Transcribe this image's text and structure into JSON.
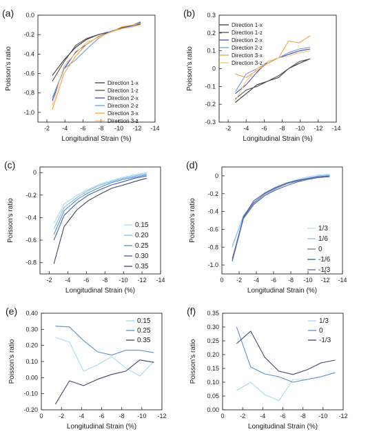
{
  "chart_data": [
    {
      "panel": "(a)",
      "type": "line",
      "xlabel": "Longitudinal Strain (%)",
      "ylabel": "Poisson's ratio",
      "xlim": [
        -1,
        -14
      ],
      "ylim": [
        -1.1,
        0
      ],
      "xticks": [
        -2,
        -4,
        -6,
        -8,
        -10,
        -12,
        -14
      ],
      "xtick_labels": [
        "-2",
        "-4",
        "-6",
        "-8",
        "-10",
        "-12",
        "-14"
      ],
      "yticks": [
        0,
        -0.2,
        -0.4,
        -0.6,
        -0.8,
        -1.0
      ],
      "ytick_labels": [
        "0.0",
        "-0.2",
        "-0.4",
        "-0.6",
        "-0.8",
        "-1.0"
      ],
      "legend_position": "bottom-right",
      "series": [
        {
          "name": "Direction 1-x",
          "color": "#3a3a3a",
          "x": [
            -2.6,
            -3.9,
            -5.2,
            -6.4,
            -7.7,
            -9.0,
            -10.3,
            -11.6,
            -12.4
          ],
          "y": [
            -0.62,
            -0.46,
            -0.33,
            -0.25,
            -0.2,
            -0.17,
            -0.13,
            -0.11,
            -0.09
          ]
        },
        {
          "name": "Direction 1-z",
          "color": "#505050",
          "x": [
            -2.6,
            -3.9,
            -5.2,
            -6.4,
            -7.7,
            -9.0,
            -10.3,
            -11.6,
            -12.4
          ],
          "y": [
            -0.68,
            -0.48,
            -0.31,
            -0.24,
            -0.2,
            -0.17,
            -0.13,
            -0.1,
            -0.07
          ]
        },
        {
          "name": "Direction 2-x",
          "color": "#3b4fc4",
          "x": [
            -2.6,
            -3.9,
            -5.2,
            -6.4,
            -7.7,
            -9.0,
            -10.3,
            -11.6,
            -12.4
          ],
          "y": [
            -0.88,
            -0.55,
            -0.38,
            -0.3,
            -0.22,
            -0.17,
            -0.14,
            -0.1,
            -0.07
          ]
        },
        {
          "name": "Direction 2-z",
          "color": "#6f9be0",
          "x": [
            -2.6,
            -3.9,
            -5.2,
            -6.4,
            -7.7,
            -9.0,
            -10.3,
            -11.6,
            -12.4
          ],
          "y": [
            -0.85,
            -0.55,
            -0.46,
            -0.35,
            -0.24,
            -0.17,
            -0.14,
            -0.11,
            -0.08
          ]
        },
        {
          "name": "Direction 3-x",
          "color": "#f2a23a",
          "x": [
            -2.6,
            -3.9,
            -5.2,
            -6.4,
            -7.7,
            -9.0,
            -10.3,
            -11.6,
            -12.4
          ],
          "y": [
            -0.97,
            -0.6,
            -0.42,
            -0.3,
            -0.22,
            -0.18,
            -0.12,
            -0.1,
            -0.08
          ]
        },
        {
          "name": "Direction 3-z",
          "color": "#f7c27a",
          "x": [
            -2.6,
            -3.9,
            -5.2,
            -6.4,
            -7.7,
            -9.0,
            -10.3,
            -11.6,
            -12.4
          ],
          "y": [
            -0.93,
            -0.52,
            -0.39,
            -0.28,
            -0.23,
            -0.18,
            -0.14,
            -0.12,
            -0.1
          ]
        }
      ]
    },
    {
      "panel": "(b)",
      "type": "line",
      "xlabel": "Longitudinal Strain (%)",
      "ylabel": "Poisson's ratio",
      "xlim": [
        -1,
        -14
      ],
      "ylim": [
        -0.3,
        0.3
      ],
      "xticks": [
        -2,
        -4,
        -6,
        -8,
        -10,
        -12,
        -14
      ],
      "xtick_labels": [
        "-2",
        "-4",
        "-6",
        "-8",
        "-10",
        "-12",
        "-14"
      ],
      "yticks": [
        0.3,
        0.2,
        0.1,
        0,
        -0.1,
        -0.2,
        -0.3
      ],
      "ytick_labels": [
        "0.3",
        "0.2",
        "0.1",
        "0",
        "-0.1",
        "-0.2",
        "-0.3"
      ],
      "legend_position": "top-left",
      "series": [
        {
          "name": "Direction 1-x",
          "color": "#3a3a3a",
          "x": [
            -2.8,
            -4.0,
            -5.2,
            -6.4,
            -7.6,
            -8.7,
            -9.9,
            -11.1
          ],
          "y": [
            -0.19,
            -0.14,
            -0.09,
            -0.07,
            -0.05,
            0.0,
            0.03,
            0.055
          ]
        },
        {
          "name": "Direction 1-z",
          "color": "#505050",
          "x": [
            -2.8,
            -4.0,
            -5.2,
            -6.4,
            -7.6,
            -8.7,
            -9.9,
            -11.1
          ],
          "y": [
            -0.17,
            -0.12,
            -0.1,
            -0.07,
            -0.04,
            0.0,
            0.04,
            0.055
          ]
        },
        {
          "name": "Direction 2-x",
          "color": "#3b4fc4",
          "x": [
            -2.8,
            -4.0,
            -5.2,
            -6.4,
            -7.6,
            -8.7,
            -9.9,
            -11.1
          ],
          "y": [
            -0.14,
            -0.09,
            -0.02,
            0.04,
            0.06,
            0.08,
            0.1,
            0.11
          ]
        },
        {
          "name": "Direction 2-z",
          "color": "#6f9be0",
          "x": [
            -2.8,
            -4.0,
            -5.2,
            -6.4,
            -7.6,
            -8.7,
            -9.9,
            -11.1
          ],
          "y": [
            -0.13,
            -0.03,
            0.0,
            0.03,
            0.06,
            0.09,
            0.11,
            0.12
          ]
        },
        {
          "name": "Direction 3-x",
          "color": "#f2a23a",
          "x": [
            -2.8,
            -4.0,
            -5.2,
            -6.4,
            -7.6,
            -8.7,
            -9.9,
            -11.1
          ],
          "y": [
            -0.03,
            -0.05,
            -0.01,
            0.03,
            0.06,
            0.155,
            0.145,
            0.185
          ]
        },
        {
          "name": "Direction 3-z",
          "color": "#f7c27a",
          "x": [
            -2.8,
            -4.0,
            -5.2,
            -6.4,
            -7.6,
            -8.7,
            -9.9,
            -11.1
          ],
          "y": [
            -0.18,
            -0.07,
            0.0,
            0.04,
            0.06,
            0.07,
            0.09,
            0.1
          ]
        }
      ]
    },
    {
      "panel": "(c)",
      "type": "line",
      "xlabel": "Longitudinal Strain (%)",
      "ylabel": "Poisson's ratio",
      "xlim": [
        -1,
        -14
      ],
      "ylim": [
        -0.9,
        0.05
      ],
      "xticks": [
        -2,
        -4,
        -6,
        -8,
        -10,
        -12,
        -14
      ],
      "xtick_labels": [
        "-2",
        "-4",
        "-6",
        "-8",
        "-10",
        "-12",
        "-14"
      ],
      "yticks": [
        0,
        -0.2,
        -0.4,
        -0.6,
        -0.8
      ],
      "ytick_labels": [
        "0",
        "-0.2",
        "-0.4",
        "-0.6",
        "-0.8"
      ],
      "legend_position": "bottom-right",
      "series": [
        {
          "name": "0.15",
          "color": "#a6d8f2",
          "x": [
            -2.5,
            -3.6,
            -5.0,
            -6.2,
            -7.5,
            -8.7,
            -10.0,
            -11.2,
            -12.5
          ],
          "y": [
            -0.45,
            -0.28,
            -0.2,
            -0.15,
            -0.1,
            -0.07,
            -0.04,
            -0.02,
            0.0
          ]
        },
        {
          "name": "0.20",
          "color": "#7cbde6",
          "x": [
            -2.5,
            -3.6,
            -5.0,
            -6.2,
            -7.5,
            -8.7,
            -10.0,
            -11.2,
            -12.5
          ],
          "y": [
            -0.5,
            -0.31,
            -0.22,
            -0.16,
            -0.11,
            -0.08,
            -0.05,
            -0.03,
            -0.01
          ]
        },
        {
          "name": "0.25",
          "color": "#5b8fd0",
          "x": [
            -2.5,
            -3.6,
            -5.0,
            -6.2,
            -7.5,
            -8.7,
            -10.0,
            -11.2,
            -12.5
          ],
          "y": [
            -0.55,
            -0.34,
            -0.24,
            -0.18,
            -0.13,
            -0.09,
            -0.06,
            -0.04,
            -0.02
          ]
        },
        {
          "name": "0.30",
          "color": "#3d5fae",
          "x": [
            -2.5,
            -3.6,
            -5.0,
            -6.2,
            -7.5,
            -8.7,
            -10.0,
            -11.2,
            -12.5
          ],
          "y": [
            -0.6,
            -0.38,
            -0.27,
            -0.2,
            -0.15,
            -0.11,
            -0.08,
            -0.05,
            -0.03
          ]
        },
        {
          "name": "0.35",
          "color": "#3b4566",
          "x": [
            -2.5,
            -3.6,
            -5.0,
            -6.2,
            -7.5,
            -8.7,
            -10.0,
            -11.2,
            -12.5
          ],
          "y": [
            -0.81,
            -0.48,
            -0.33,
            -0.25,
            -0.19,
            -0.14,
            -0.11,
            -0.08,
            -0.05
          ]
        }
      ]
    },
    {
      "panel": "(d)",
      "type": "line",
      "xlabel": "Longitudinal Strain (%)",
      "ylabel": "Poisson's ratio",
      "xlim": [
        0,
        -14
      ],
      "ylim": [
        -1.1,
        0.1
      ],
      "xticks": [
        0,
        -2,
        -4,
        -6,
        -8,
        -10,
        -12,
        -14
      ],
      "xtick_labels": [
        "0",
        "-2",
        "-4",
        "-6",
        "-8",
        "-10",
        "-12",
        "-14"
      ],
      "yticks": [
        0,
        -0.2,
        -0.4,
        -0.6,
        -0.8,
        -1.0
      ],
      "ytick_labels": [
        "0",
        "-0.2",
        "-0.4",
        "-0.6",
        "-0.8",
        "-1.0"
      ],
      "legend_position": "bottom-right",
      "series": [
        {
          "name": "1/3",
          "color": "#b9def2",
          "x": [
            -1.2,
            -2.5,
            -3.7,
            -5.0,
            -6.2,
            -7.5,
            -8.7,
            -10.0,
            -11.2,
            -12.5
          ],
          "y": [
            -0.78,
            -0.44,
            -0.3,
            -0.21,
            -0.14,
            -0.08,
            -0.04,
            -0.01,
            0.01,
            0.02
          ]
        },
        {
          "name": "1/6",
          "color": "#8cc6ea",
          "x": [
            -1.2,
            -2.5,
            -3.7,
            -5.0,
            -6.2,
            -7.5,
            -8.7,
            -10.0,
            -11.2,
            -12.5
          ],
          "y": [
            -0.8,
            -0.45,
            -0.31,
            -0.22,
            -0.15,
            -0.09,
            -0.05,
            -0.02,
            0.0,
            0.01
          ]
        },
        {
          "name": "0",
          "color": "#6f7c92",
          "x": [
            -1.2,
            -2.5,
            -3.7,
            -5.0,
            -6.2,
            -7.5,
            -8.7,
            -10.0,
            -11.2,
            -12.5
          ],
          "y": [
            -0.93,
            -0.47,
            -0.3,
            -0.2,
            -0.14,
            -0.09,
            -0.06,
            -0.03,
            -0.01,
            0.0
          ]
        },
        {
          "name": "-1/6",
          "color": "#3d5fae",
          "x": [
            -1.2,
            -2.5,
            -3.7,
            -5.0,
            -6.2,
            -7.5,
            -8.7,
            -10.0,
            -11.2,
            -12.5
          ],
          "y": [
            -0.95,
            -0.46,
            -0.28,
            -0.19,
            -0.13,
            -0.08,
            -0.05,
            -0.03,
            -0.01,
            0.0
          ]
        },
        {
          "name": "-1/3",
          "color": "#5a63b8",
          "x": [
            -1.2,
            -2.5,
            -3.7,
            -5.0,
            -6.2,
            -7.5,
            -8.7,
            -10.0,
            -11.2,
            -12.5
          ],
          "y": [
            -0.96,
            -0.48,
            -0.32,
            -0.22,
            -0.16,
            -0.11,
            -0.07,
            -0.04,
            -0.02,
            -0.01
          ]
        }
      ]
    },
    {
      "panel": "(e)",
      "type": "line",
      "xlabel": "Longitudinal Strain (%)",
      "ylabel": "Poisson's ratio",
      "xlim": [
        0,
        -12
      ],
      "ylim": [
        -0.2,
        0.4
      ],
      "xticks": [
        0,
        -2,
        -4,
        -6,
        -8,
        -10,
        -12
      ],
      "xtick_labels": [
        "0",
        "-2",
        "-4",
        "-6",
        "-8",
        "-10",
        "-12"
      ],
      "yticks": [
        0.4,
        0.3,
        0.2,
        0.1,
        0,
        -0.1,
        -0.2
      ],
      "ytick_labels": [
        "0.40",
        "0.30",
        "0.20",
        "0.10",
        "0.00",
        "-0.10",
        "-0.20"
      ],
      "legend_position": "top-right",
      "series": [
        {
          "name": "0.15",
          "color": "#a6d8f2",
          "x": [
            -1.4,
            -2.8,
            -4.2,
            -5.6,
            -7.0,
            -8.4,
            -9.8,
            -11.2
          ],
          "y": [
            0.25,
            0.22,
            0.04,
            0.08,
            0.13,
            0.06,
            0.01,
            0.1
          ]
        },
        {
          "name": "0.25",
          "color": "#5b8fd0",
          "x": [
            -1.4,
            -2.8,
            -4.2,
            -5.6,
            -7.0,
            -8.4,
            -9.8,
            -11.2
          ],
          "y": [
            0.32,
            0.315,
            0.23,
            0.16,
            0.14,
            0.17,
            0.17,
            0.155
          ]
        },
        {
          "name": "0.35",
          "color": "#3b4566",
          "x": [
            -1.4,
            -2.8,
            -4.2,
            -5.6,
            -7.0,
            -8.4,
            -9.8,
            -11.2
          ],
          "y": [
            -0.165,
            -0.02,
            -0.05,
            -0.01,
            0.02,
            0.04,
            0.11,
            0.095
          ]
        }
      ]
    },
    {
      "panel": "(f)",
      "type": "line",
      "xlabel": "Longitudinal Strain (%)",
      "ylabel": "Poisson's ratio",
      "xlim": [
        0,
        -12
      ],
      "ylim": [
        0,
        0.35
      ],
      "xticks": [
        0,
        -2,
        -4,
        -6,
        -8,
        -10,
        -12
      ],
      "xtick_labels": [
        "0",
        "-2",
        "-4",
        "-6",
        "-8",
        "-10",
        "-12"
      ],
      "yticks": [
        0.35,
        0.3,
        0.25,
        0.2,
        0.15,
        0.1,
        0.05,
        0
      ],
      "ytick_labels": [
        "0.35",
        "0.30",
        "0.25",
        "0.20",
        "0.15",
        "0.10",
        "0.05",
        "0.00"
      ],
      "legend_position": "top-right",
      "series": [
        {
          "name": "1/3",
          "color": "#a6d8f2",
          "x": [
            -1.4,
            -2.8,
            -4.2,
            -5.6,
            -7.0,
            -8.4,
            -9.8,
            -11.2
          ],
          "y": [
            0.07,
            0.1,
            0.055,
            0.033,
            0.11,
            0.11,
            0.12,
            0.135
          ]
        },
        {
          "name": "0",
          "color": "#5b8fd0",
          "x": [
            -1.4,
            -2.8,
            -4.2,
            -5.6,
            -7.0,
            -8.4,
            -9.8,
            -11.2
          ],
          "y": [
            0.3,
            0.155,
            0.13,
            0.12,
            0.1,
            0.11,
            0.12,
            0.135
          ]
        },
        {
          "name": "-1/3",
          "color": "#3b4566",
          "x": [
            -1.4,
            -2.8,
            -4.2,
            -5.6,
            -7.0,
            -8.4,
            -9.8,
            -11.2
          ],
          "y": [
            0.24,
            0.285,
            0.19,
            0.14,
            0.128,
            0.145,
            0.17,
            0.18
          ]
        }
      ]
    }
  ]
}
